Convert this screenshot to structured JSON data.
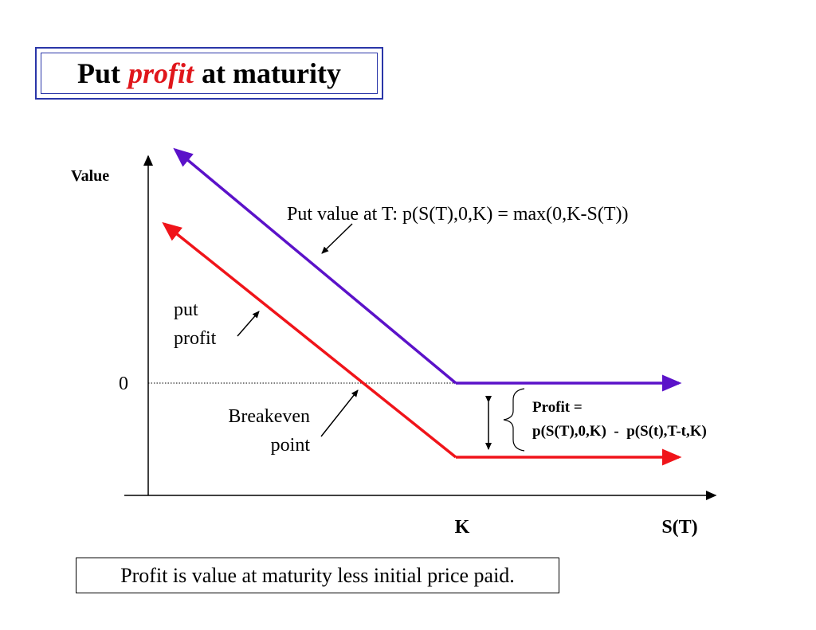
{
  "title": {
    "prefix": "Put",
    "accent": "profit",
    "suffix": "at maturity"
  },
  "diagram": {
    "y_axis_label": "Value",
    "x_axis_label": "S(T)",
    "zero_label": "0",
    "strike_label": "K",
    "put_value_label": "Put value at T:  p(S(T),0,K) = max(0,K-S(T))",
    "put_profit_label_line1": "put",
    "put_profit_label_line2": "profit",
    "breakeven_label_line1": "Breakeven",
    "breakeven_label_line2": "point",
    "profit_formula_line1": "Profit =",
    "profit_formula_line2": "p(S(T),0,K)  -  p(S(t),T-t,K)"
  },
  "note": "Profit is value at maturity less initial price paid.",
  "colors": {
    "put_value_line": "#5b12c9",
    "put_profit_line": "#f0141a",
    "title_border": "#2a36a8",
    "title_accent": "#e0161b"
  }
}
